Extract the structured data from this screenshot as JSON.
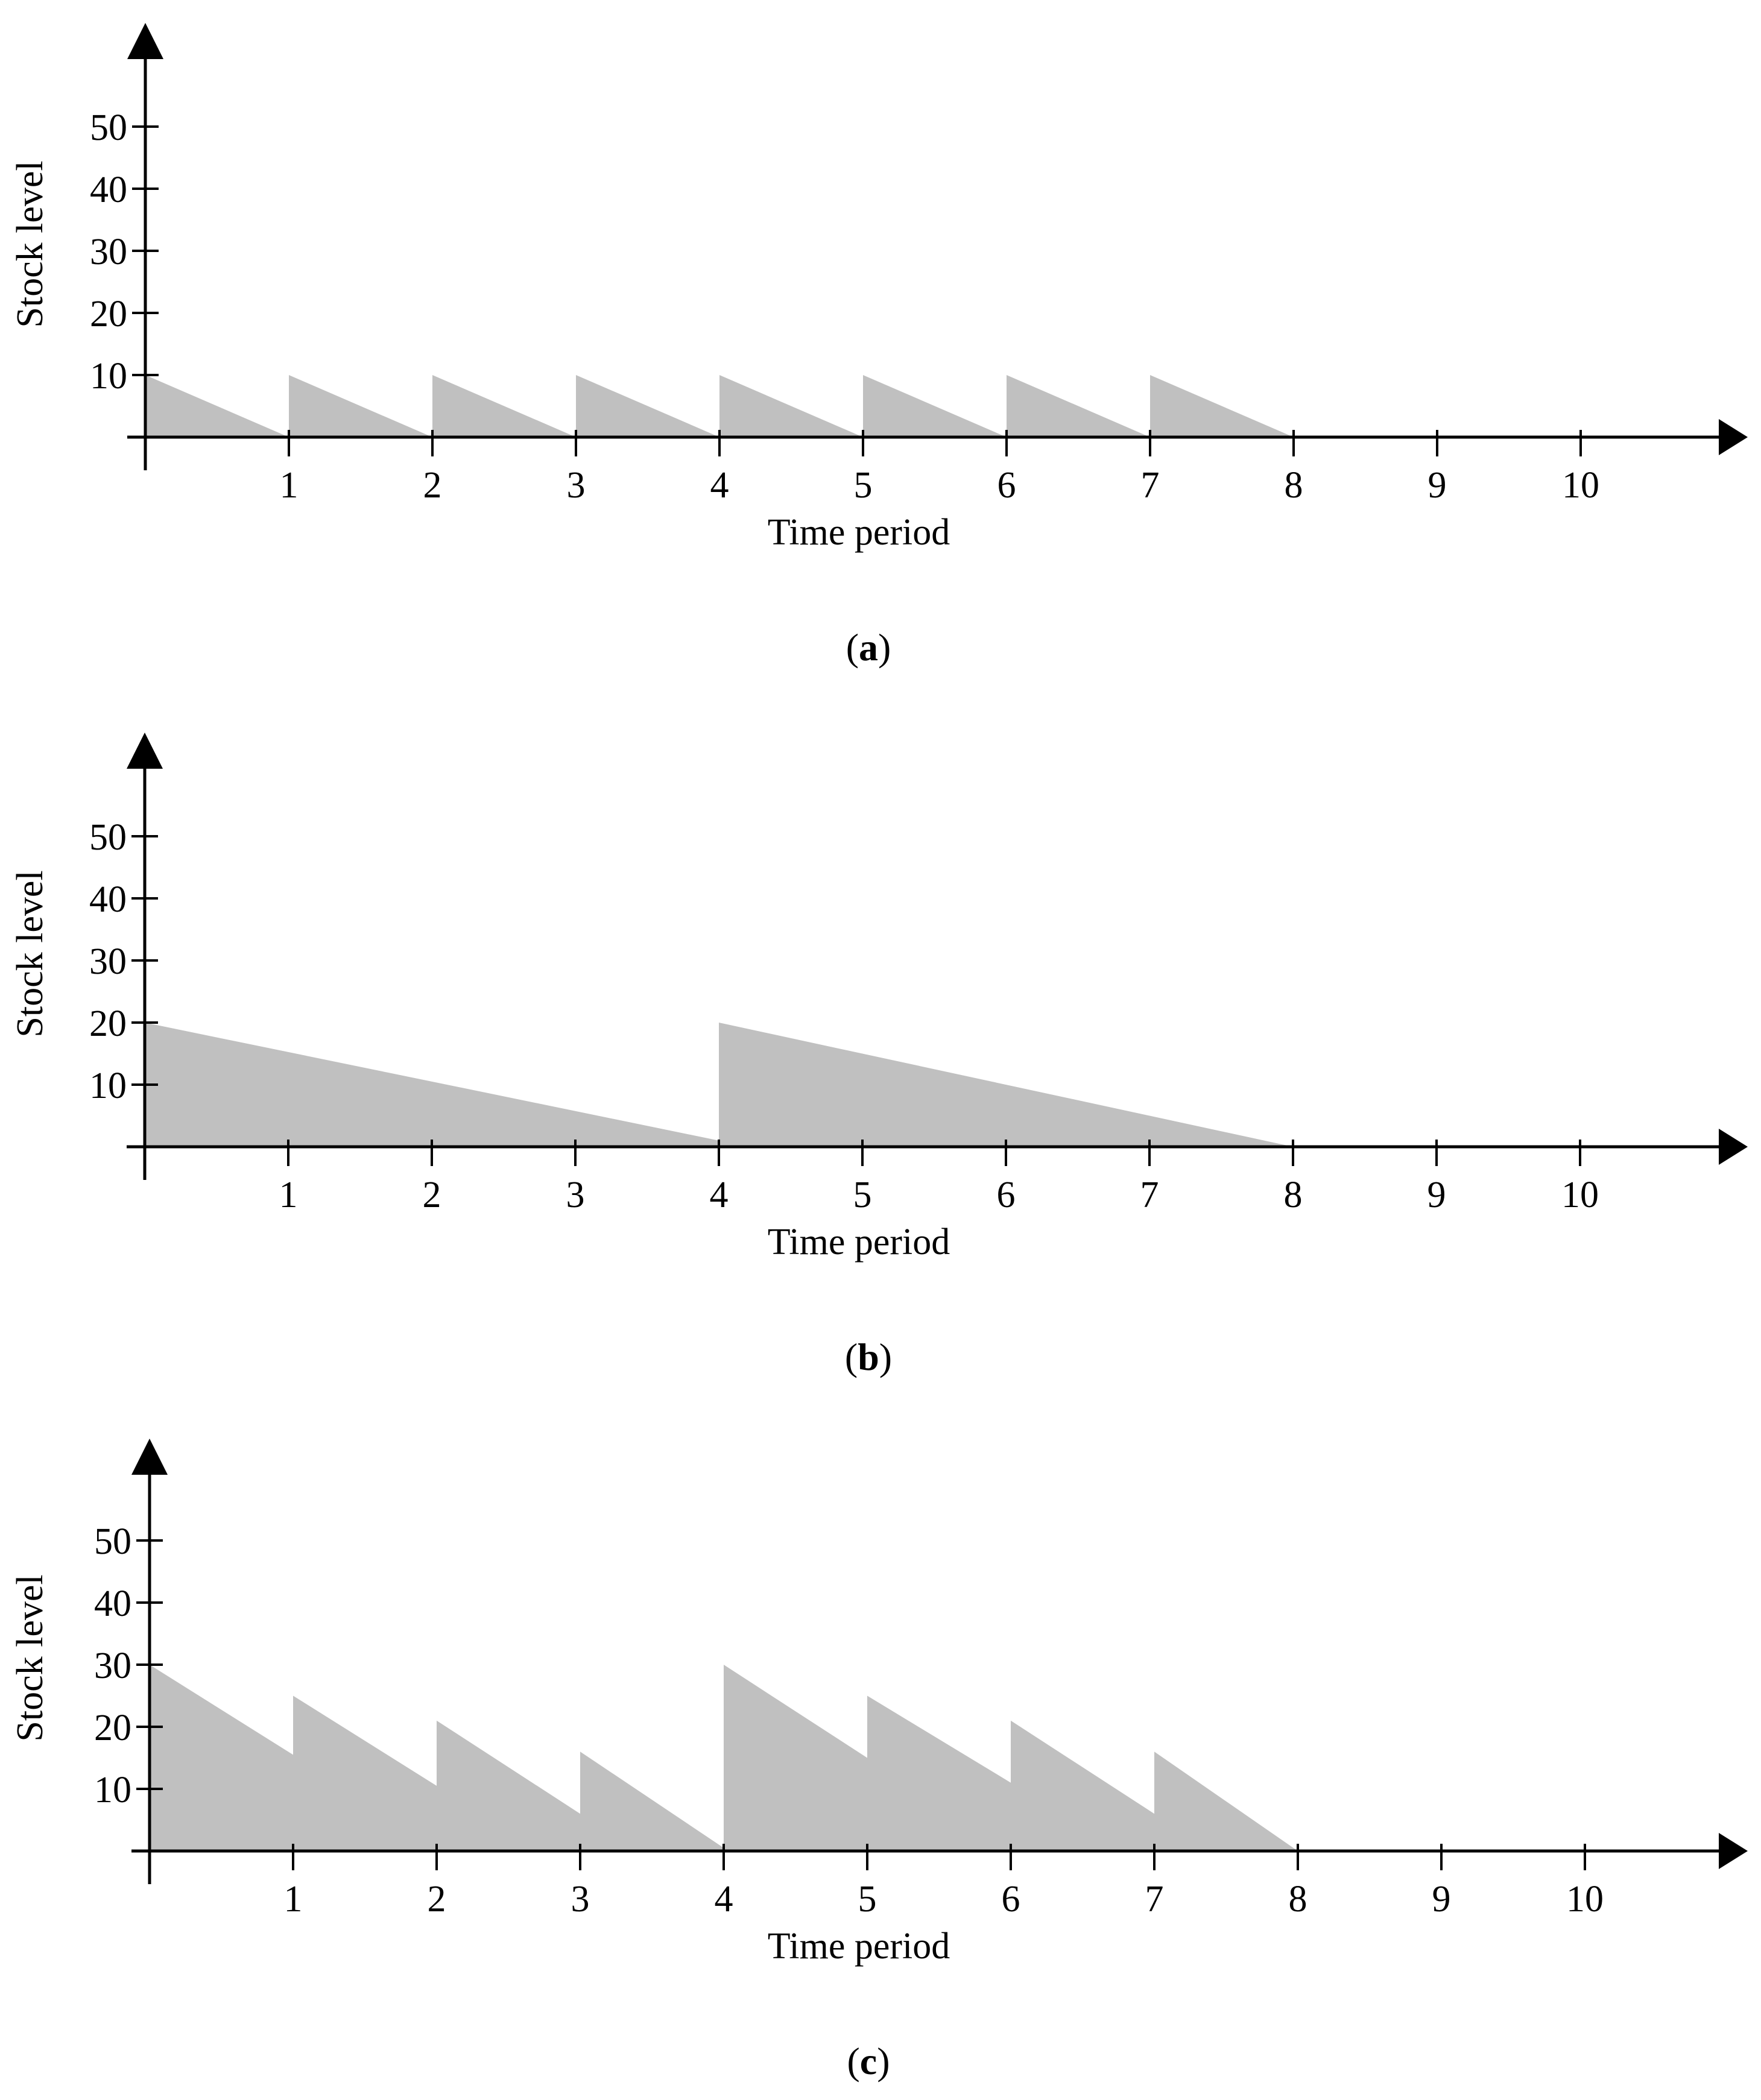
{
  "figure": {
    "fill_color": "#c0c0c0",
    "axis_color": "#000000"
  },
  "chart_data": [
    {
      "id": "a",
      "type": "area",
      "caption_letter": "a",
      "title": "",
      "xlabel": "Time period",
      "ylabel": "Stock level",
      "xticks": [
        "1",
        "2",
        "3",
        "4",
        "5",
        "6",
        "7",
        "8",
        "9",
        "10"
      ],
      "yticks": [
        "10",
        "20",
        "30",
        "40",
        "50"
      ],
      "xlim": [
        0,
        11
      ],
      "ylim": [
        0,
        60
      ],
      "grid": false,
      "points": [
        [
          0,
          10
        ],
        [
          1,
          0
        ],
        [
          1,
          10
        ],
        [
          2,
          0
        ],
        [
          2,
          10
        ],
        [
          3,
          0
        ],
        [
          3,
          10
        ],
        [
          4,
          0
        ],
        [
          4,
          10
        ],
        [
          5,
          0
        ],
        [
          5,
          10
        ],
        [
          6,
          0
        ],
        [
          6,
          10
        ],
        [
          7,
          0
        ],
        [
          7,
          10
        ],
        [
          8,
          0
        ]
      ]
    },
    {
      "id": "b",
      "type": "area",
      "caption_letter": "b",
      "title": "",
      "xlabel": "Time period",
      "ylabel": "Stock level",
      "xticks": [
        "1",
        "2",
        "3",
        "4",
        "5",
        "6",
        "7",
        "8",
        "9",
        "10"
      ],
      "yticks": [
        "10",
        "20",
        "30",
        "40",
        "50"
      ],
      "xlim": [
        0,
        11
      ],
      "ylim": [
        0,
        60
      ],
      "grid": false,
      "points": [
        [
          0,
          20
        ],
        [
          4,
          1
        ],
        [
          4,
          20
        ],
        [
          8,
          0
        ]
      ]
    },
    {
      "id": "c",
      "type": "area",
      "caption_letter": "c",
      "title": "",
      "xlabel": "Time period",
      "ylabel": "Stock level",
      "xticks": [
        "1",
        "2",
        "3",
        "4",
        "5",
        "6",
        "7",
        "8",
        "9",
        "10"
      ],
      "yticks": [
        "10",
        "20",
        "30",
        "40",
        "50"
      ],
      "xlim": [
        0,
        11
      ],
      "ylim": [
        0,
        60
      ],
      "grid": false,
      "points": [
        [
          0,
          30
        ],
        [
          1,
          15.5
        ],
        [
          1,
          25
        ],
        [
          2,
          10.5
        ],
        [
          2,
          21
        ],
        [
          3,
          6
        ],
        [
          3,
          16
        ],
        [
          4,
          0.5
        ],
        [
          4,
          30
        ],
        [
          5,
          15
        ],
        [
          5,
          25
        ],
        [
          6,
          11
        ],
        [
          6,
          21
        ],
        [
          7,
          6
        ],
        [
          7,
          16
        ],
        [
          8,
          0
        ]
      ]
    }
  ]
}
